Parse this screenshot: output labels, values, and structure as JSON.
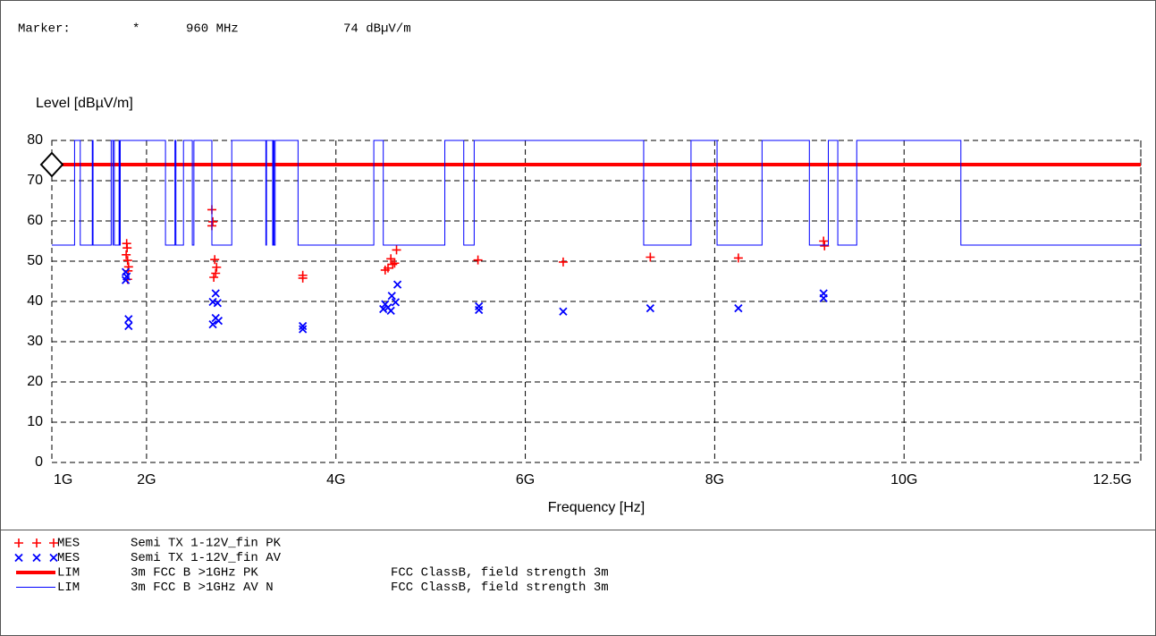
{
  "chart_data": {
    "type": "scatter",
    "marker": {
      "label": "Marker:",
      "symbol": "*",
      "x": 960000000,
      "x_label": "960 MHz",
      "y": 74,
      "y_label": "74 dBµV/m"
    },
    "y_label": "Level [dBµV/m]",
    "x_label": "Frequency [Hz]",
    "xlim": [
      1000000000,
      12500000000
    ],
    "xticks": [
      {
        "value": 1000000000,
        "label": "1G"
      },
      {
        "value": 2000000000,
        "label": "2G"
      },
      {
        "value": 4000000000,
        "label": "4G"
      },
      {
        "value": 6000000000,
        "label": "6G"
      },
      {
        "value": 8000000000,
        "label": "8G"
      },
      {
        "value": 10000000000,
        "label": "10G"
      },
      {
        "value": 12500000000,
        "label": "12.5G"
      }
    ],
    "ylim": [
      0,
      80
    ],
    "yticks": [
      0,
      10,
      20,
      30,
      40,
      50,
      60,
      70,
      80
    ],
    "grid": true,
    "series": [
      {
        "kind": "MES",
        "name": "Semi TX 1-12V_fin PK",
        "style": "plus",
        "color": "#ff0000",
        "x": [
          1790000000,
          1795000000,
          1785000000,
          1800000000,
          1810000000,
          1805000000,
          1800000000,
          2690000000,
          2700000000,
          2690000000,
          2720000000,
          2740000000,
          2730000000,
          2710000000,
          3650000000,
          3650000000,
          4520000000,
          4550000000,
          4600000000,
          4580000000,
          4640000000,
          4620000000,
          5500000000,
          6400000000,
          7320000000,
          8250000000,
          9150000000,
          9160000000
        ],
        "values": [
          54.4,
          53.3,
          51.6,
          50.2,
          48.6,
          47.6,
          45.5,
          62.8,
          59.8,
          58.8,
          50.4,
          48.5,
          47,
          46,
          46.5,
          45.8,
          47.8,
          48.3,
          49.2,
          50.6,
          52.8,
          49.5,
          50.3,
          49.8,
          51,
          50.8,
          55,
          53.8
        ]
      },
      {
        "kind": "MES",
        "name": "Semi TX 1-12V_fin AV",
        "style": "cross",
        "color": "#0000ff",
        "x": [
          1780000000,
          1790000000,
          1780000000,
          1810000000,
          1810000000,
          2730000000,
          2700000000,
          2750000000,
          2730000000,
          2760000000,
          2700000000,
          3650000000,
          3650000000,
          4650000000,
          4590000000,
          4630000000,
          4520000000,
          4550000000,
          4500000000,
          4580000000,
          5510000000,
          5510000000,
          6400000000,
          7320000000,
          8250000000,
          9150000000,
          9150000000
        ],
        "values": [
          47.3,
          46.2,
          45.3,
          35.6,
          33.9,
          42,
          39.9,
          39.6,
          35.9,
          35.2,
          34.3,
          33.9,
          33.1,
          44.2,
          41.4,
          39.8,
          39.3,
          38.5,
          38.1,
          37.7,
          38.8,
          37.9,
          37.5,
          38.3,
          38.3,
          42,
          40.8
        ]
      },
      {
        "kind": "LIM",
        "name": "3m FCC B >1GHz PK",
        "description": "FCC ClassB, field strength 3m",
        "style": "line",
        "color": "#ff0000",
        "line_width": 4,
        "x": [
          1000000000,
          12500000000
        ],
        "values": [
          74,
          74
        ]
      },
      {
        "kind": "LIM",
        "name": "3m FCC B >1GHz AV N",
        "description": "FCC ClassB, field strength 3m",
        "style": "line",
        "color": "#0000ff",
        "line_width": 1,
        "x": [
          1000000000,
          1240000000,
          1240000000,
          1300000000,
          1300000000,
          1427000000,
          1427000000,
          1435000000,
          1435000000,
          1626500000,
          1626500000,
          1645500000,
          1645500000,
          1646500000,
          1646500000,
          1660000000,
          1660000000,
          1710000000,
          1710000000,
          1718800000,
          1718800000,
          1722200000,
          1722200000,
          2200000000,
          2200000000,
          2300000000,
          2300000000,
          2310000000,
          2310000000,
          2390000000,
          2390000000,
          2483500000,
          2483500000,
          2500000000,
          2500000000,
          2690000000,
          2690000000,
          2900000000,
          2900000000,
          3260000000,
          3260000000,
          3267000000,
          3267000000,
          3332000000,
          3332000000,
          3339000000,
          3339000000,
          3345800000,
          3345800000,
          3358000000,
          3358000000,
          3600000000,
          3600000000,
          4400000000,
          4400000000,
          4500000000,
          4500000000,
          5150000000,
          5150000000,
          5350000000,
          5350000000,
          5460000000,
          5460000000,
          7250000000,
          7250000000,
          7750000000,
          7750000000,
          8025000000,
          8025000000,
          8500000000,
          8500000000,
          9000000000,
          9000000000,
          9200000000,
          9200000000,
          9300000000,
          9300000000,
          9500000000,
          9500000000,
          10600000000,
          10600000000,
          12500000000
        ],
        "values": [
          54,
          54,
          80,
          80,
          54,
          54,
          80,
          80,
          54,
          54,
          80,
          80,
          54,
          54,
          80,
          80,
          54,
          54,
          80,
          80,
          54,
          54,
          80,
          80,
          54,
          54,
          80,
          80,
          54,
          54,
          80,
          80,
          54,
          54,
          80,
          80,
          54,
          54,
          80,
          80,
          54,
          54,
          80,
          80,
          54,
          54,
          80,
          80,
          54,
          54,
          80,
          80,
          54,
          54,
          80,
          80,
          54,
          54,
          80,
          80,
          54,
          54,
          80,
          80,
          54,
          54,
          80,
          80,
          54,
          54,
          80,
          80,
          54,
          54,
          80,
          80,
          54,
          54,
          80,
          80,
          54,
          54
        ]
      }
    ]
  }
}
